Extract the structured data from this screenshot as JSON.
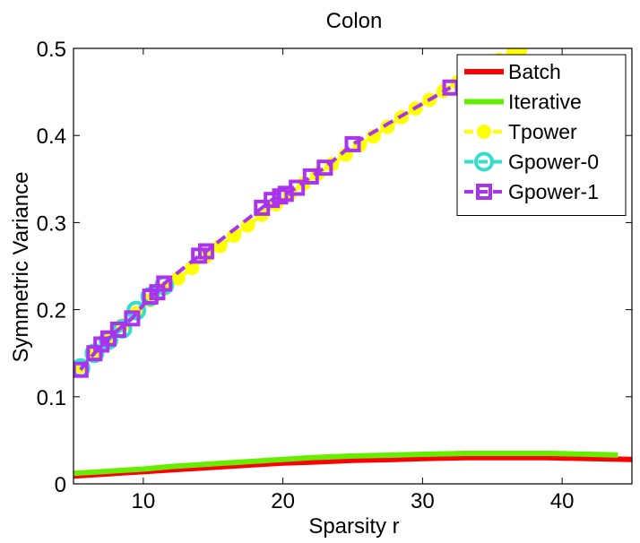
{
  "chart_data": {
    "type": "line",
    "title": "Colon",
    "xlabel": "Sparsity r",
    "ylabel": "Symmetric Variance",
    "xlim": [
      5,
      45
    ],
    "ylim": [
      0,
      0.5
    ],
    "xticks": [
      10,
      20,
      30,
      40
    ],
    "yticks": [
      0,
      0.1,
      0.2,
      0.3,
      0.4,
      0.5
    ],
    "xtick_labels": [
      "10",
      "20",
      "30",
      "40"
    ],
    "ytick_labels": [
      "0",
      "0.1",
      "0.2",
      "0.3",
      "0.4",
      "0.5"
    ],
    "legend_position": "top-right",
    "series": [
      {
        "name": "Batch",
        "color": "#ff0000",
        "line": "solid",
        "marker": "none",
        "x": [
          5,
          8,
          10,
          12,
          15,
          18,
          20,
          22,
          25,
          28,
          30,
          33,
          36,
          39,
          42,
          45
        ],
        "y": [
          0.009,
          0.012,
          0.014,
          0.016,
          0.019,
          0.022,
          0.024,
          0.025,
          0.027,
          0.028,
          0.029,
          0.03,
          0.03,
          0.03,
          0.029,
          0.028
        ]
      },
      {
        "name": "Iterative",
        "color": "#66ee00",
        "line": "solid",
        "marker": "none",
        "x": [
          5,
          8,
          10,
          12,
          15,
          18,
          20,
          22,
          25,
          28,
          30,
          33,
          36,
          39,
          42,
          44
        ],
        "y": [
          0.012,
          0.015,
          0.017,
          0.02,
          0.023,
          0.026,
          0.028,
          0.03,
          0.032,
          0.033,
          0.034,
          0.035,
          0.035,
          0.035,
          0.034,
          0.033
        ]
      },
      {
        "name": "Tpower",
        "color": "#ffff00",
        "line": "dashed",
        "marker": "circle",
        "x": [
          5.5,
          6.5,
          7.5,
          8.5,
          9.5,
          10.5,
          11.5,
          12.5,
          13.5,
          14.5,
          15.5,
          16.5,
          17.5,
          18.5,
          19.5,
          20.5,
          21.5,
          22.5,
          23.5,
          24.5,
          25.5,
          26.5,
          27.5,
          28.5,
          29.5,
          30.5,
          31.5,
          32.5,
          33.5,
          34.5,
          35.5,
          36.5,
          37.0
        ],
        "y": [
          0.135,
          0.152,
          0.168,
          0.182,
          0.196,
          0.211,
          0.224,
          0.236,
          0.248,
          0.261,
          0.273,
          0.285,
          0.297,
          0.309,
          0.321,
          0.333,
          0.345,
          0.356,
          0.367,
          0.378,
          0.389,
          0.399,
          0.41,
          0.421,
          0.431,
          0.441,
          0.451,
          0.461,
          0.47,
          0.479,
          0.487,
          0.495,
          0.499
        ]
      },
      {
        "name": "Gpower-0",
        "color": "#33ddcc",
        "line": "dashed",
        "marker": "circle-open",
        "x": [
          5.5,
          6.5,
          7.5,
          8.5,
          9.5,
          10.5,
          11.5
        ],
        "y": [
          0.133,
          0.15,
          0.165,
          0.178,
          0.199,
          0.215,
          0.228
        ]
      },
      {
        "name": "Gpower-1",
        "color": "#aa33ee",
        "line": "dashed",
        "marker": "square",
        "x": [
          5.5,
          6.5,
          7.0,
          7.5,
          8.2,
          9.2,
          10.5,
          11.0,
          11.5,
          14.0,
          14.5,
          18.5,
          19.2,
          19.8,
          20.2,
          21.0,
          22.0,
          23.0,
          25.0,
          32.0
        ],
        "y": [
          0.131,
          0.15,
          0.16,
          0.167,
          0.177,
          0.19,
          0.215,
          0.22,
          0.23,
          0.262,
          0.267,
          0.317,
          0.326,
          0.33,
          0.333,
          0.34,
          0.353,
          0.363,
          0.39,
          0.455
        ]
      }
    ]
  }
}
